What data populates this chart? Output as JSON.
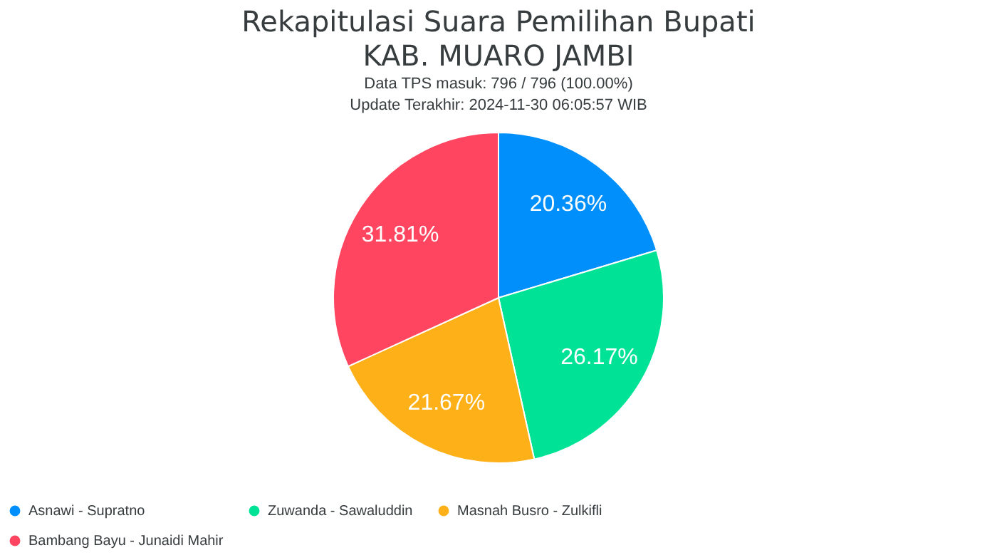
{
  "chart_data": {
    "type": "pie",
    "title": "Rekapitulasi Suara Pemilihan Bupati\nKAB. MUARO JAMBI",
    "subtitle": "Data TPS masuk: 796 / 796 (100.00%)\nUpdate Terakhir: 2024-11-30 06:05:57 WIB",
    "categories": [
      "Asnawi - Supratno",
      "Zuwanda - Sawaluddin",
      "Masnah Busro - Zulkifli",
      "Bambang Bayu - Junaidi Mahir"
    ],
    "values": [
      20.36,
      26.17,
      21.67,
      31.81
    ],
    "colors": [
      "#008ffb",
      "#00e396",
      "#feb019",
      "#ff4560"
    ],
    "value_labels": [
      "20.36%",
      "26.17%",
      "21.67%",
      "31.81%"
    ],
    "legend": "bottom"
  }
}
